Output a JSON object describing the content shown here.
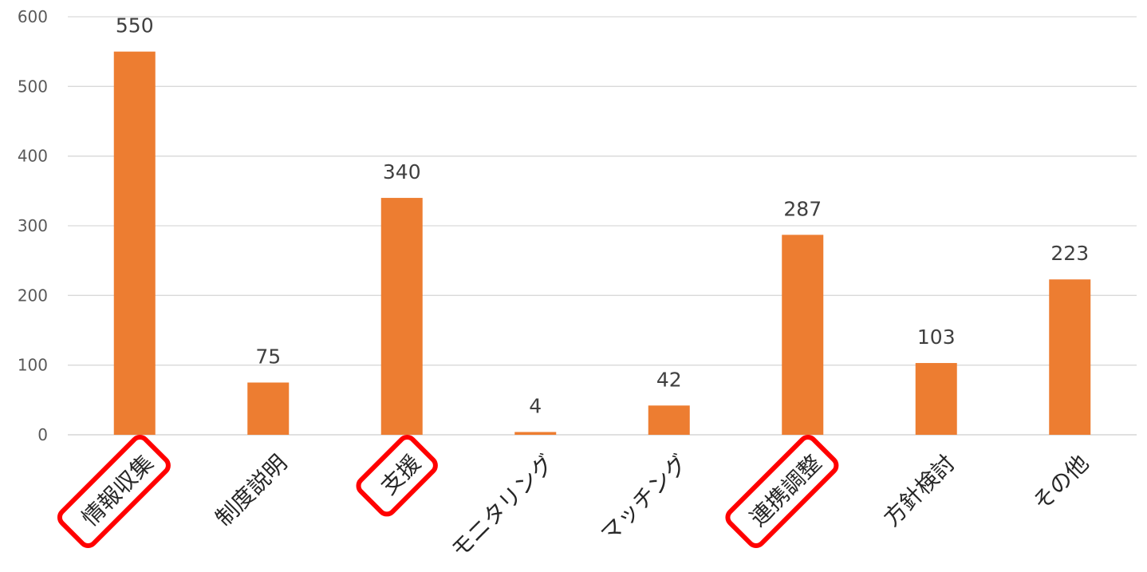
{
  "chart_data": {
    "type": "bar",
    "title": "",
    "xlabel": "",
    "ylabel": "",
    "ylim": [
      0,
      600
    ],
    "yticks": [
      0,
      100,
      200,
      300,
      400,
      500,
      600
    ],
    "grid": true,
    "legend": "none",
    "categories": [
      "情報収集",
      "制度説明",
      "支援",
      "モニタリング",
      "マッチング",
      "連携調整",
      "方針検討",
      "その他"
    ],
    "values": [
      550,
      75,
      340,
      4,
      42,
      287,
      103,
      223
    ],
    "highlighted_categories": [
      "情報収集",
      "支援",
      "連携調整"
    ],
    "bar_color": "#ED7D31",
    "highlight_color": "#FF0000",
    "grid_color": "#D9D9D9"
  }
}
